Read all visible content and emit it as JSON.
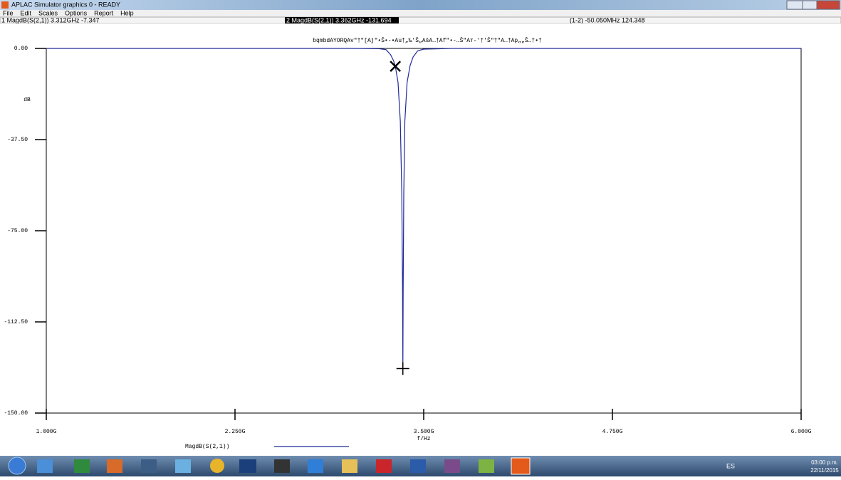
{
  "window": {
    "title": "APLAC Simulator graphics 0 - READY"
  },
  "menu": [
    "File",
    "Edit",
    "Scales",
    "Options",
    "Report",
    "Help"
  ],
  "status": [
    "1 MagdB(S(2,1)) 3.312GHz -7.347",
    "2 MagdB(S(2,1)) 3.362GHz -131.694",
    "(1-2) -50.050MHz 124.348"
  ],
  "chart_data": {
    "type": "line",
    "subtitle": "bqmbdAYORQAv\"†\"[Aj\"•Š•-•Au†„‰'Š„AšA…†Af\"•-…Š\"Aт-'†'Š\"†\"A…†Ap„„Š…†•†",
    "ylabel": "dB",
    "xlabel": "f/Hz",
    "x": [
      1.0,
      3.0,
      3.2,
      3.25,
      3.28,
      3.3,
      3.312,
      3.33,
      3.345,
      3.355,
      3.36,
      3.362,
      3.364,
      3.368,
      3.375,
      3.39,
      3.41,
      3.43,
      3.46,
      3.5,
      3.7,
      6.0
    ],
    "series": [
      {
        "name": "MagdB(S(2,1))",
        "color": "#1f2a9a",
        "values": [
          0,
          0,
          -0.1,
          -0.5,
          -2.5,
          -5,
          -7.347,
          -14,
          -30,
          -60,
          -100,
          -131.694,
          -100,
          -60,
          -30,
          -14,
          -7,
          -3.5,
          -1,
          -0.3,
          0,
          0
        ]
      }
    ],
    "xlim": [
      1,
      6
    ],
    "ylim": [
      -150,
      0
    ],
    "xticks": [
      {
        "value": 1,
        "label": "1.000G"
      },
      {
        "value": 2.25,
        "label": "2.250G"
      },
      {
        "value": 3.5,
        "label": "3.500G"
      },
      {
        "value": 4.75,
        "label": "4.750G"
      },
      {
        "value": 6,
        "label": "6.000G"
      }
    ],
    "yticks": [
      {
        "value": 0,
        "label": "0.00"
      },
      {
        "value": -37.5,
        "label": "-37.50"
      },
      {
        "value": -75,
        "label": "-75.00"
      },
      {
        "value": -112.5,
        "label": "-112.50"
      },
      {
        "value": -150,
        "label": "-150.00"
      }
    ]
  },
  "tray": {
    "language": "ES",
    "time": "03:00 p.m.",
    "date": "22/11/2015"
  }
}
